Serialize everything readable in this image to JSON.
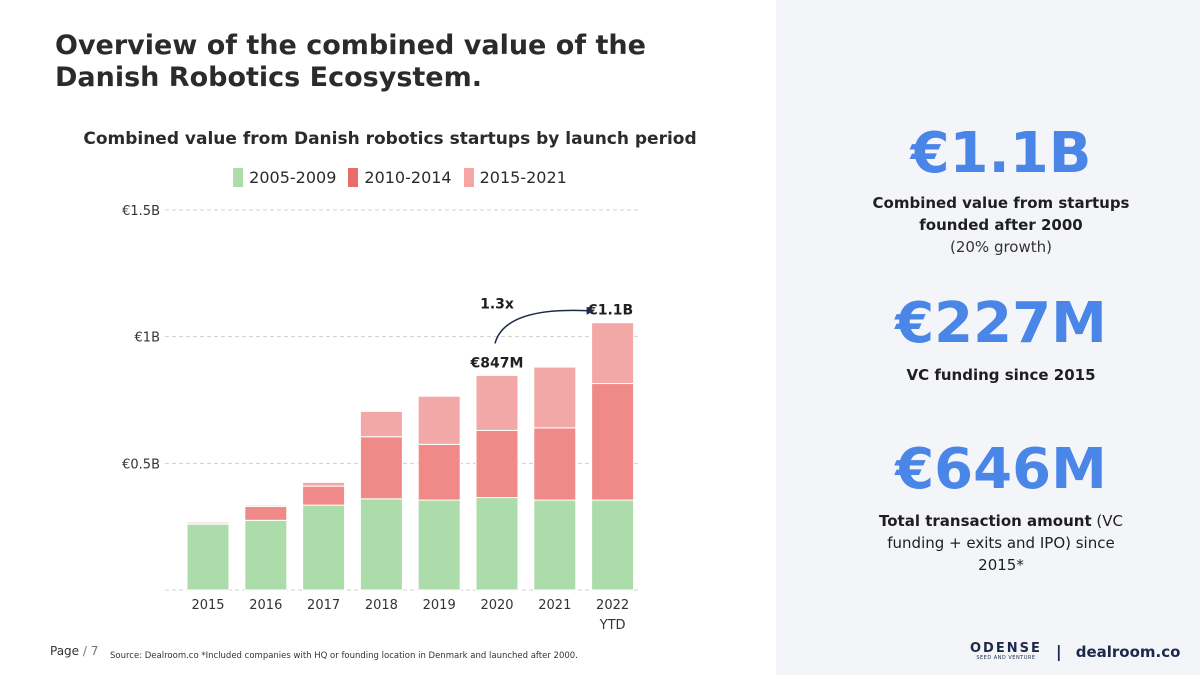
{
  "title": "Overview of the combined value of the Danish Robotics Ecosystem.",
  "kpis": [
    {
      "value": "€1.1B",
      "label": "Combined value from startups founded after 2000",
      "sub": "(20% growth)"
    },
    {
      "value": "€227M",
      "label": "VC funding since 2015",
      "sub": ""
    },
    {
      "value": "€646M",
      "label_bold": "Total transaction amount",
      "label_rest": " (VC funding + exits and IPO) since 2015*"
    }
  ],
  "footer": {
    "page_label": "Page",
    "page_number": "/ 7",
    "source": "Source: Dealroom.co *Included companies with HQ or founding location in Denmark and launched after 2000.",
    "brand_name": "ODENSE",
    "brand_sub": "SEED AND VENTURE",
    "separator": "|",
    "partner": "dealroom.co"
  },
  "colors": {
    "series1": "#acdcaa",
    "series2": "#f08a88",
    "series3": "#f2a8a6",
    "accent": "#4a86e8",
    "arrow": "#1b2a4a"
  },
  "chart_data": {
    "type": "bar",
    "stacked": true,
    "title": "Combined value from Danish robotics startups by launch period",
    "categories": [
      "2015",
      "2016",
      "2017",
      "2018",
      "2019",
      "2020",
      "2021",
      "2022\nYTD"
    ],
    "series": [
      {
        "name": "2005-2009",
        "values": [
          0.26,
          0.275,
          0.335,
          0.36,
          0.355,
          0.365,
          0.355,
          0.355
        ]
      },
      {
        "name": "2010-2014",
        "values": [
          0.005,
          0.055,
          0.075,
          0.245,
          0.22,
          0.265,
          0.285,
          0.46
        ]
      },
      {
        "name": "2015-2021",
        "values": [
          0.005,
          0.005,
          0.015,
          0.1,
          0.19,
          0.217,
          0.24,
          0.24
        ]
      }
    ],
    "ylim": [
      0,
      1.5
    ],
    "yticks": [
      0.5,
      1,
      1.5
    ],
    "ytick_labels": [
      "€0.5B",
      "€1B",
      "€1.5B"
    ],
    "xlabel": "",
    "ylabel": "",
    "legend_position": "top",
    "annotations": {
      "bar_2020": "€847M",
      "bar_2022": "€1.1B",
      "growth": "1.3x"
    }
  }
}
